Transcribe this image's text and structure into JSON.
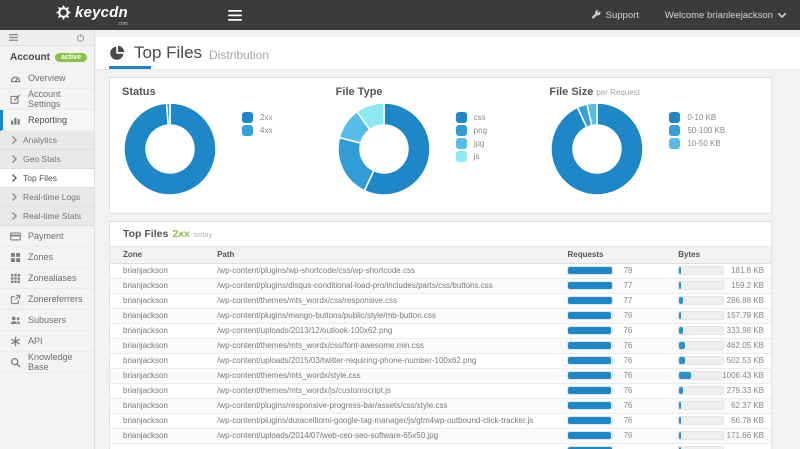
{
  "topbar": {
    "brand": "keycdn",
    "brand_suffix": ".com",
    "support": "Support",
    "welcome": "Welcome brianleejackson"
  },
  "sidebar": {
    "account_label": "Account",
    "account_badge": "active",
    "items": [
      {
        "label": "Overview"
      },
      {
        "label": "Account Settings"
      },
      {
        "label": "Reporting"
      },
      {
        "label": "Analytics"
      },
      {
        "label": "Geo Stats"
      },
      {
        "label": "Top Files"
      },
      {
        "label": "Real-time Logs"
      },
      {
        "label": "Real-time Stats"
      },
      {
        "label": "Payment"
      },
      {
        "label": "Zones"
      },
      {
        "label": "Zonealiases"
      },
      {
        "label": "Zonereferrers"
      },
      {
        "label": "Subusers"
      },
      {
        "label": "API"
      },
      {
        "label": "Knowledge Base"
      }
    ]
  },
  "page": {
    "title": "Top Files",
    "subtitle": "Distribution"
  },
  "chart_data": [
    {
      "type": "pie",
      "title": "Status",
      "labels": [
        "2xx",
        "4xx"
      ],
      "values": [
        98.8,
        1.2
      ],
      "colors": [
        "#1d87c8",
        "#36a0d9"
      ],
      "donut": true,
      "legend_position": "right"
    },
    {
      "type": "pie",
      "title": "File Type",
      "labels": [
        "css",
        "png",
        "jpg",
        "js"
      ],
      "values": [
        57,
        22,
        11,
        10
      ],
      "colors": [
        "#1d87c8",
        "#339cd6",
        "#55bde8",
        "#8ce9f3"
      ],
      "donut": true,
      "legend_position": "right"
    },
    {
      "type": "pie",
      "title": "File Size",
      "subtitle": "per Request",
      "labels": [
        "0-10 KB",
        "50-100 KB",
        "10-50 KB"
      ],
      "values": [
        93,
        3.5,
        3.5
      ],
      "colors": [
        "#1d87c8",
        "#36a0d9",
        "#55bde8"
      ],
      "donut": true,
      "legend_position": "right"
    }
  ],
  "table": {
    "title": "Top Files",
    "title_status": "2xx",
    "title_period": "today",
    "columns": [
      "Zone",
      "Path",
      "Requests",
      "Bytes"
    ],
    "rows": [
      {
        "zone": "brianjackson",
        "path": "/wp-content/plugins/wp-shortcode/css/wp-shortcode.css",
        "requests": 78,
        "bytes_kb": 181.8,
        "bytes_label": "181.8 KB"
      },
      {
        "zone": "brianjackson",
        "path": "/wp-content/plugins/disqus-conditional-load-pro/includes/parts/css/buttons.css",
        "requests": 77,
        "bytes_kb": 159.2,
        "bytes_label": "159.2 KB"
      },
      {
        "zone": "brianjackson",
        "path": "/wp-content/themes/mts_wordx/css/responsive.css",
        "requests": 77,
        "bytes_kb": 286.88,
        "bytes_label": "286.88 KB"
      },
      {
        "zone": "brianjackson",
        "path": "/wp-content/plugins/mango-buttons/public/style/mb-button.css",
        "requests": 76,
        "bytes_kb": 157.79,
        "bytes_label": "157.79 KB"
      },
      {
        "zone": "brianjackson",
        "path": "/wp-content/uploads/2013/12/outlook-100x62.png",
        "requests": 76,
        "bytes_kb": 333.98,
        "bytes_label": "333.98 KB"
      },
      {
        "zone": "brianjackson",
        "path": "/wp-content/themes/mts_wordx/css/font-awesome.min.css",
        "requests": 76,
        "bytes_kb": 462.05,
        "bytes_label": "462.05 KB"
      },
      {
        "zone": "brianjackson",
        "path": "/wp-content/uploads/2015/03/twitter-requiring-phone-number-100x62.png",
        "requests": 76,
        "bytes_kb": 502.53,
        "bytes_label": "502.53 KB"
      },
      {
        "zone": "brianjackson",
        "path": "/wp-content/themes/mts_wordx/style.css",
        "requests": 76,
        "bytes_kb": 1006.43,
        "bytes_label": "1006.43 KB"
      },
      {
        "zone": "brianjackson",
        "path": "/wp-content/themes/mts_wordx/js/customscript.js",
        "requests": 76,
        "bytes_kb": 279.33,
        "bytes_label": "279.33 KB"
      },
      {
        "zone": "brianjackson",
        "path": "/wp-content/plugins/responsive-progress-bar/assets/css/style.css",
        "requests": 76,
        "bytes_kb": 62.37,
        "bytes_label": "62.37 KB"
      },
      {
        "zone": "brianjackson",
        "path": "/wp-content/plugins/duracelltomi-google-tag-manager/js/gtm4wp-outbound-click-tracker.js",
        "requests": 76,
        "bytes_kb": 66.78,
        "bytes_label": "66.78 KB"
      },
      {
        "zone": "brianjackson",
        "path": "/wp-content/uploads/2014/07/web-ceo-seo-software-65x50.jpg",
        "requests": 76,
        "bytes_kb": 171.66,
        "bytes_label": "171.66 KB"
      }
    ],
    "partial_row": {
      "requests_pct": 100,
      "bytes_pct": 5
    }
  },
  "colors": {
    "accent": "#1d87c8",
    "green": "#8bc34a",
    "topbar": "#3c3b3b"
  }
}
